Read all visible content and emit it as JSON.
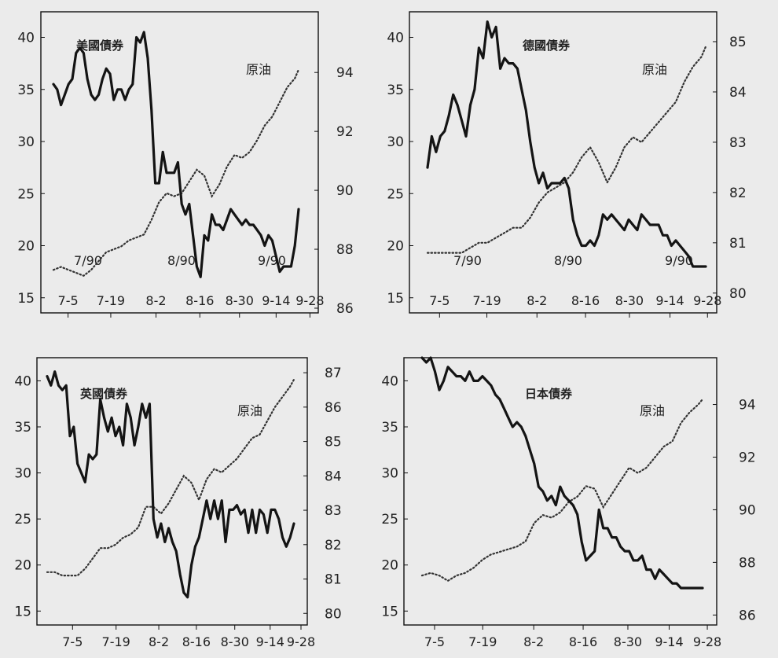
{
  "chart_data": [
    {
      "type": "line",
      "title": "美國債券",
      "secondary_label": "原油",
      "categories": [
        "7-5",
        "7-19",
        "8-2",
        "8-16",
        "8-30",
        "9-14",
        "9-28"
      ],
      "month_labels": [
        "7/90",
        "8/90",
        "9/90"
      ],
      "y_left_ticks": [
        15,
        20,
        25,
        30,
        35,
        40
      ],
      "y_right_ticks": [
        86,
        88,
        90,
        92,
        94
      ],
      "ylim_left": [
        14,
        42
      ],
      "ylim_right": [
        86,
        95.9
      ],
      "series": [
        {
          "name": "美國債券",
          "axis": "left",
          "style": "solid",
          "x": [
            0,
            1,
            2,
            3,
            4,
            5,
            6,
            7,
            8,
            9,
            10,
            11,
            12,
            13,
            14,
            15,
            16,
            17,
            18,
            19,
            20,
            21,
            22,
            23,
            24,
            25,
            26,
            27,
            28,
            29,
            30,
            31,
            32,
            33,
            34,
            35,
            36,
            37,
            38,
            39,
            40,
            41,
            42,
            43,
            44,
            45,
            46,
            47,
            48,
            49,
            50,
            51,
            52,
            53,
            54,
            55,
            56,
            57,
            58,
            59,
            60,
            61,
            62,
            63,
            64,
            65
          ],
          "values": [
            35.5,
            35,
            33.5,
            34.5,
            35.5,
            36,
            38.5,
            39,
            38.5,
            36,
            34.5,
            34,
            34.5,
            36,
            37,
            36.5,
            34,
            35,
            35,
            34,
            35,
            35.5,
            40,
            39.5,
            40.5,
            38,
            33,
            26,
            26,
            29,
            27,
            27,
            27,
            28,
            24,
            23,
            24,
            21,
            18,
            17,
            21,
            20.5,
            23,
            22,
            22,
            21.5,
            22.5,
            23.5,
            23,
            22.5,
            22,
            22.5,
            22,
            22,
            21.5,
            21,
            20,
            21,
            20.5,
            19,
            17.5,
            18,
            18,
            18,
            20,
            23.5
          ]
        },
        {
          "name": "原油",
          "axis": "right",
          "style": "dotted",
          "x": [
            0,
            2,
            4,
            6,
            8,
            10,
            12,
            14,
            16,
            18,
            20,
            22,
            24,
            26,
            28,
            30,
            32,
            34,
            36,
            38,
            40,
            42,
            44,
            46,
            48,
            50,
            52,
            54,
            56,
            58,
            60,
            62,
            64,
            65
          ],
          "values": [
            87.3,
            87.4,
            87.3,
            87.2,
            87.1,
            87.3,
            87.6,
            87.9,
            88.0,
            88.1,
            88.3,
            88.4,
            88.5,
            89.0,
            89.6,
            89.9,
            89.8,
            89.9,
            90.3,
            90.7,
            90.5,
            89.8,
            90.2,
            90.8,
            91.2,
            91.1,
            91.3,
            91.7,
            92.2,
            92.5,
            93.0,
            93.5,
            93.8,
            94.1
          ]
        }
      ]
    },
    {
      "type": "line",
      "title": "德國債券",
      "secondary_label": "原油",
      "categories": [
        "7-5",
        "7-19",
        "8-2",
        "8-16",
        "8-30",
        "9-14",
        "9-28"
      ],
      "month_labels": [
        "7/90",
        "8/90",
        "9/90"
      ],
      "y_left_ticks": [
        15,
        20,
        25,
        30,
        35,
        40
      ],
      "y_right_ticks": [
        80,
        81,
        82,
        83,
        84,
        85
      ],
      "ylim_left": [
        14,
        42
      ],
      "ylim_right": [
        79.7,
        85.5
      ],
      "series": [
        {
          "name": "德國債券",
          "axis": "left",
          "style": "solid",
          "x": [
            0,
            1,
            2,
            3,
            4,
            5,
            6,
            7,
            8,
            9,
            10,
            11,
            12,
            13,
            14,
            15,
            16,
            17,
            18,
            19,
            20,
            21,
            22,
            23,
            24,
            25,
            26,
            27,
            28,
            29,
            30,
            31,
            32,
            33,
            34,
            35,
            36,
            37,
            38,
            39,
            40,
            41,
            42,
            43,
            44,
            45,
            46,
            47,
            48,
            49,
            50,
            51,
            52,
            53,
            54,
            55,
            56,
            57,
            58,
            59,
            60,
            61,
            62,
            63,
            64,
            65
          ],
          "values": [
            27.5,
            30.5,
            29,
            30.5,
            31,
            32.5,
            34.5,
            33.5,
            32,
            30.5,
            33.5,
            35,
            39,
            38,
            41.5,
            40,
            41,
            37,
            38,
            37.5,
            37.5,
            37,
            35,
            33,
            30,
            27.5,
            26,
            27,
            25.5,
            26,
            26,
            26,
            26.5,
            25.5,
            22.5,
            21,
            20,
            20,
            20.5,
            20,
            21,
            23,
            22.5,
            23,
            22.5,
            22,
            21.5,
            22.5,
            22,
            21.5,
            23,
            22.5,
            22,
            22,
            22,
            21,
            21,
            20,
            20.5,
            20,
            19.5,
            19,
            18,
            18,
            18,
            18
          ]
        },
        {
          "name": "原油",
          "axis": "right",
          "style": "dotted",
          "x": [
            0,
            2,
            4,
            6,
            8,
            10,
            12,
            14,
            16,
            18,
            20,
            22,
            24,
            26,
            28,
            30,
            32,
            34,
            36,
            38,
            40,
            42,
            44,
            46,
            48,
            50,
            52,
            54,
            56,
            58,
            60,
            62,
            64,
            65
          ],
          "values": [
            80.8,
            80.8,
            80.8,
            80.8,
            80.8,
            80.9,
            81.0,
            81.0,
            81.1,
            81.2,
            81.3,
            81.3,
            81.5,
            81.8,
            82.0,
            82.1,
            82.2,
            82.4,
            82.7,
            82.9,
            82.6,
            82.2,
            82.5,
            82.9,
            83.1,
            83.0,
            83.2,
            83.4,
            83.6,
            83.8,
            84.2,
            84.5,
            84.7,
            84.9
          ]
        }
      ]
    },
    {
      "type": "line",
      "title": "英國債券",
      "secondary_label": "原油",
      "categories": [
        "7-5",
        "7-19",
        "8-2",
        "8-16",
        "8-30",
        "9-14",
        "9-28"
      ],
      "y_left_ticks": [
        15,
        20,
        25,
        30,
        35,
        40
      ],
      "y_right_ticks": [
        80,
        81,
        82,
        83,
        84,
        85,
        86,
        87
      ],
      "ylim_left": [
        14,
        42
      ],
      "ylim_right": [
        79.8,
        87.3
      ],
      "series": [
        {
          "name": "英國債券",
          "axis": "left",
          "style": "solid",
          "x": [
            0,
            1,
            2,
            3,
            4,
            5,
            6,
            7,
            8,
            9,
            10,
            11,
            12,
            13,
            14,
            15,
            16,
            17,
            18,
            19,
            20,
            21,
            22,
            23,
            24,
            25,
            26,
            27,
            28,
            29,
            30,
            31,
            32,
            33,
            34,
            35,
            36,
            37,
            38,
            39,
            40,
            41,
            42,
            43,
            44,
            45,
            46,
            47,
            48,
            49,
            50,
            51,
            52,
            53,
            54,
            55,
            56,
            57,
            58,
            59,
            60,
            61,
            62,
            63,
            64,
            65
          ],
          "values": [
            40.5,
            39.5,
            41,
            39.5,
            39,
            39.5,
            34,
            35,
            31,
            30,
            29,
            32,
            31.5,
            32,
            38,
            36,
            34.5,
            36,
            34,
            35,
            33,
            37.5,
            36,
            33,
            35,
            37.5,
            36,
            37.5,
            25,
            23,
            24.5,
            22.5,
            24,
            22.5,
            21.5,
            19,
            17,
            16.5,
            20,
            22,
            23,
            25,
            27,
            25,
            27,
            25,
            27,
            22.5,
            26,
            26,
            26.5,
            25.5,
            26,
            23.5,
            26,
            23.5,
            26,
            25.5,
            23.5,
            26,
            26,
            25,
            23,
            22,
            23,
            24.5
          ]
        },
        {
          "name": "原油",
          "axis": "right",
          "style": "dotted",
          "x": [
            0,
            2,
            4,
            6,
            8,
            10,
            12,
            14,
            16,
            18,
            20,
            22,
            24,
            26,
            28,
            30,
            32,
            34,
            36,
            38,
            40,
            42,
            44,
            46,
            48,
            50,
            52,
            54,
            56,
            58,
            60,
            62,
            64,
            65
          ],
          "values": [
            81.2,
            81.2,
            81.1,
            81.1,
            81.1,
            81.3,
            81.6,
            81.9,
            81.9,
            82.0,
            82.2,
            82.3,
            82.5,
            83.1,
            83.1,
            82.9,
            83.2,
            83.6,
            84.0,
            83.8,
            83.3,
            83.9,
            84.2,
            84.1,
            84.3,
            84.5,
            84.8,
            85.1,
            85.2,
            85.6,
            86.0,
            86.3,
            86.6,
            86.8
          ]
        }
      ]
    },
    {
      "type": "line",
      "title": "日本債券",
      "secondary_label": "原油",
      "categories": [
        "7-5",
        "7-19",
        "8-2",
        "8-16",
        "8-30",
        "9-14",
        "9-28"
      ],
      "y_left_ticks": [
        15,
        20,
        25,
        30,
        35,
        40
      ],
      "y_right_ticks": [
        86,
        88,
        90,
        92,
        94
      ],
      "ylim_left": [
        14,
        42
      ],
      "ylim_right": [
        85.8,
        95.6
      ],
      "series": [
        {
          "name": "日本債券",
          "axis": "left",
          "style": "solid",
          "x": [
            0,
            1,
            2,
            3,
            4,
            5,
            6,
            7,
            8,
            9,
            10,
            11,
            12,
            13,
            14,
            15,
            16,
            17,
            18,
            19,
            20,
            21,
            22,
            23,
            24,
            25,
            26,
            27,
            28,
            29,
            30,
            31,
            32,
            33,
            34,
            35,
            36,
            37,
            38,
            39,
            40,
            41,
            42,
            43,
            44,
            45,
            46,
            47,
            48,
            49,
            50,
            51,
            52,
            53,
            54,
            55,
            56,
            57,
            58,
            59,
            60,
            61,
            62,
            63,
            64,
            65
          ],
          "values": [
            42.5,
            42,
            42.5,
            41,
            39,
            40,
            41.5,
            41,
            40.5,
            40.5,
            40,
            41,
            40,
            40,
            40.5,
            40,
            39.5,
            38.5,
            38,
            37,
            36,
            35,
            35.5,
            35,
            34,
            32.5,
            31,
            28.5,
            28,
            27,
            27.5,
            26.5,
            28.5,
            27.5,
            27,
            26.5,
            25.5,
            22.5,
            20.5,
            21,
            21.5,
            26,
            24,
            24,
            23,
            23,
            22,
            21.5,
            21.5,
            20.5,
            20.5,
            21,
            19.5,
            19.5,
            18.5,
            19.5,
            19,
            18.5,
            18,
            18,
            17.5,
            17.5,
            17.5,
            17.5,
            17.5,
            17.5
          ]
        },
        {
          "name": "原油",
          "axis": "right",
          "style": "dotted",
          "x": [
            0,
            2,
            4,
            6,
            8,
            10,
            12,
            14,
            16,
            18,
            20,
            22,
            24,
            26,
            28,
            30,
            32,
            34,
            36,
            38,
            40,
            42,
            44,
            46,
            48,
            50,
            52,
            54,
            56,
            58,
            60,
            62,
            64,
            65
          ],
          "values": [
            87.5,
            87.6,
            87.5,
            87.3,
            87.5,
            87.6,
            87.8,
            88.1,
            88.3,
            88.4,
            88.5,
            88.6,
            88.8,
            89.5,
            89.8,
            89.7,
            89.9,
            90.3,
            90.5,
            90.9,
            90.8,
            90.1,
            90.6,
            91.1,
            91.6,
            91.4,
            91.6,
            92.0,
            92.4,
            92.6,
            93.3,
            93.7,
            94.0,
            94.2
          ]
        }
      ]
    }
  ]
}
